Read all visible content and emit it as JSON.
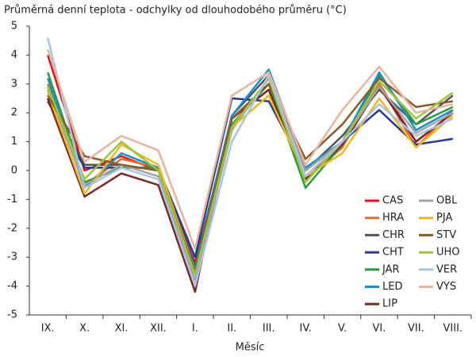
{
  "chart_data": {
    "type": "line",
    "title": "Průměrná denní teplota - odchylky od dlouhodobého průměru (°C)",
    "x_label": "Měsíc",
    "categories": [
      "IX.",
      "X.",
      "XI.",
      "XII.",
      "I.",
      "II.",
      "III.",
      "IV.",
      "V.",
      "VI.",
      "VII.",
      "VIII."
    ],
    "ylim": [
      -5,
      5
    ],
    "yticks": [
      -5,
      -4,
      -3,
      -2,
      -1,
      0,
      1,
      2,
      3,
      4,
      5
    ],
    "grid": false,
    "legend": "lower right",
    "series": [
      {
        "name": "CAS",
        "color": "#e3121b",
        "values": [
          4.0,
          0.0,
          0.5,
          0.0,
          -3.2,
          1.8,
          3.0,
          -0.2,
          1.0,
          3.0,
          1.0,
          2.0
        ]
      },
      {
        "name": "HRA",
        "color": "#e0702a",
        "values": [
          3.0,
          -0.5,
          0.4,
          0.1,
          -3.5,
          1.8,
          2.8,
          -0.3,
          0.8,
          3.0,
          0.8,
          2.1
        ]
      },
      {
        "name": "CHR",
        "color": "#555555",
        "values": [
          2.5,
          0.2,
          0.2,
          0.0,
          -3.3,
          1.9,
          3.3,
          0.0,
          1.2,
          2.8,
          1.6,
          2.6
        ]
      },
      {
        "name": "CHT",
        "color": "#263a8f",
        "values": [
          2.4,
          0.1,
          0.1,
          0.1,
          -3.0,
          2.5,
          2.4,
          0.0,
          1.0,
          2.1,
          0.9,
          1.1
        ]
      },
      {
        "name": "JAR",
        "color": "#2e9a3e",
        "values": [
          3.4,
          -0.4,
          0.1,
          0.1,
          -3.6,
          1.6,
          3.0,
          -0.6,
          0.9,
          3.3,
          1.6,
          2.2
        ]
      },
      {
        "name": "LED",
        "color": "#1a8fc9",
        "values": [
          3.2,
          -0.6,
          0.6,
          0.1,
          -3.4,
          1.9,
          3.5,
          0.1,
          1.0,
          3.4,
          1.4,
          2.1
        ]
      },
      {
        "name": "LIP",
        "color": "#7a2626",
        "values": [
          2.5,
          -0.9,
          -0.1,
          -0.5,
          -4.2,
          1.8,
          2.8,
          -0.3,
          0.9,
          2.9,
          1.0,
          2.0
        ]
      },
      {
        "name": "OBL",
        "color": "#a3a3a3",
        "values": [
          2.8,
          -0.5,
          0.2,
          -0.2,
          -3.8,
          1.4,
          3.2,
          0.0,
          1.0,
          2.9,
          1.3,
          2.0
        ]
      },
      {
        "name": "PJA",
        "color": "#f0b820",
        "values": [
          2.7,
          -0.8,
          0.9,
          0.2,
          -3.5,
          1.5,
          2.6,
          -0.2,
          0.6,
          2.5,
          0.8,
          1.9
        ]
      },
      {
        "name": "STV",
        "color": "#8b5a2b",
        "values": [
          2.6,
          0.5,
          0.2,
          0.0,
          -3.5,
          1.8,
          3.0,
          0.4,
          1.6,
          3.2,
          2.2,
          2.4
        ]
      },
      {
        "name": "UHO",
        "color": "#9bc53d",
        "values": [
          2.9,
          -0.3,
          1.0,
          0.0,
          -3.6,
          1.5,
          3.2,
          -0.4,
          1.0,
          3.1,
          1.8,
          2.7
        ]
      },
      {
        "name": "VER",
        "color": "#aac4e6",
        "values": [
          4.6,
          -0.6,
          0.1,
          -0.3,
          -4.0,
          1.0,
          3.3,
          -0.2,
          1.0,
          2.3,
          1.2,
          1.8
        ]
      },
      {
        "name": "VYS",
        "color": "#e8b4a0",
        "values": [
          4.2,
          0.3,
          1.2,
          0.7,
          -2.7,
          2.6,
          3.4,
          0.2,
          2.1,
          3.6,
          2.0,
          2.3
        ]
      }
    ]
  }
}
